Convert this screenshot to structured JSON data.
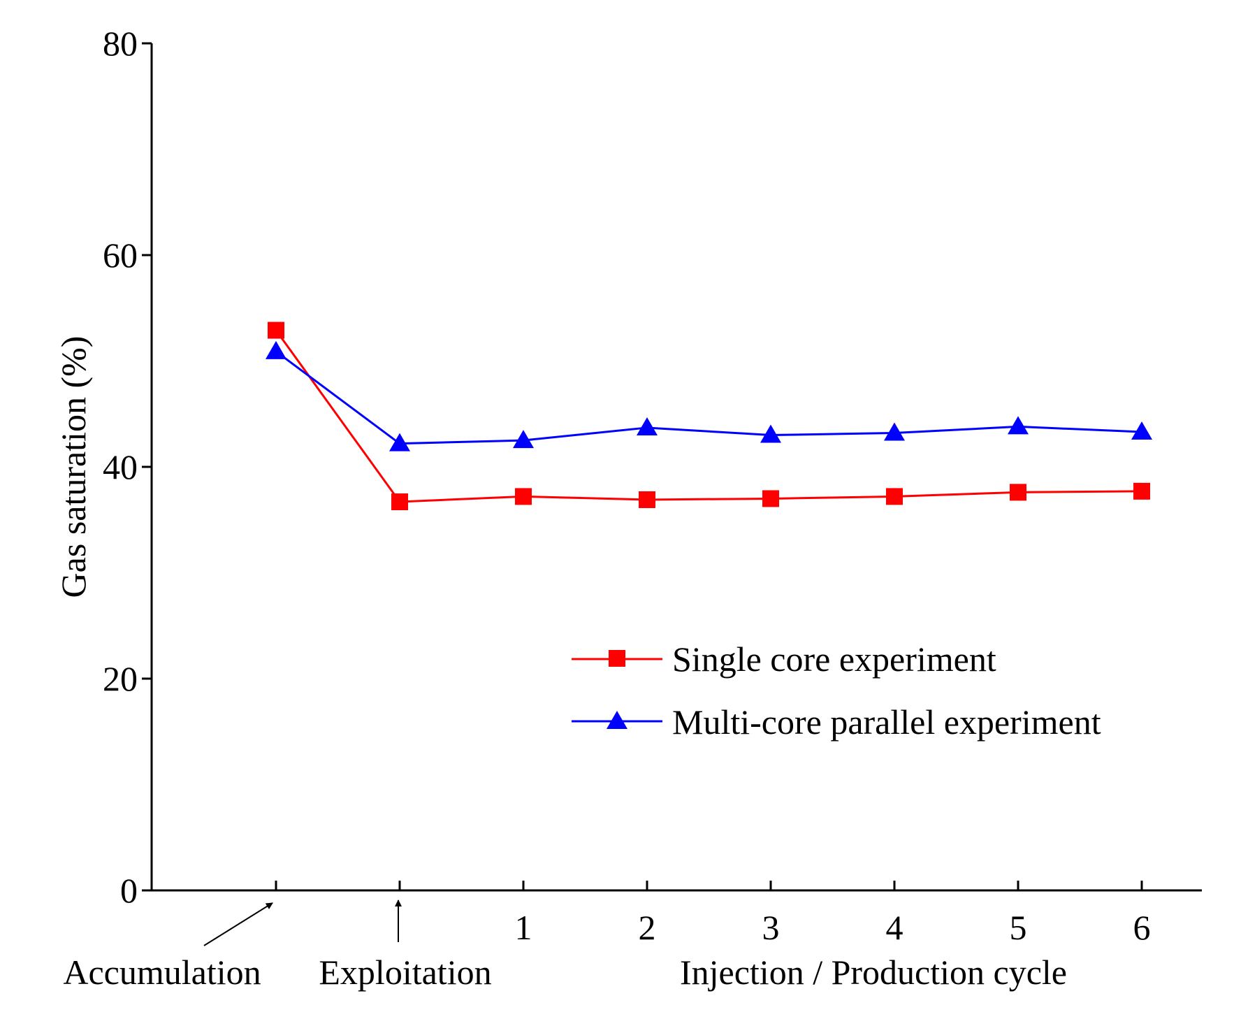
{
  "chart_data": {
    "type": "line",
    "title": "",
    "xlabel": "Injection / Production cycle",
    "ylabel": "Gas saturation (%)",
    "ylim": [
      0,
      80
    ],
    "yticks": [
      "0",
      "20",
      "40",
      "60",
      "80"
    ],
    "categories": [
      "",
      "",
      "1",
      "2",
      "3",
      "4",
      "5",
      "6"
    ],
    "stage_labels": [
      "Accumulation",
      "Exploitation"
    ],
    "grid": false,
    "legend_position": "center-right",
    "series": [
      {
        "name": "Single core experiment",
        "marker": "square",
        "color": "#ff0000",
        "values": [
          52.9,
          36.7,
          37.2,
          36.9,
          37.0,
          37.2,
          37.6,
          37.7
        ]
      },
      {
        "name": "Multi-core parallel experiment",
        "marker": "triangle",
        "color": "#0000ff",
        "values": [
          50.9,
          42.2,
          42.5,
          43.7,
          43.0,
          43.2,
          43.8,
          43.3
        ]
      }
    ]
  }
}
